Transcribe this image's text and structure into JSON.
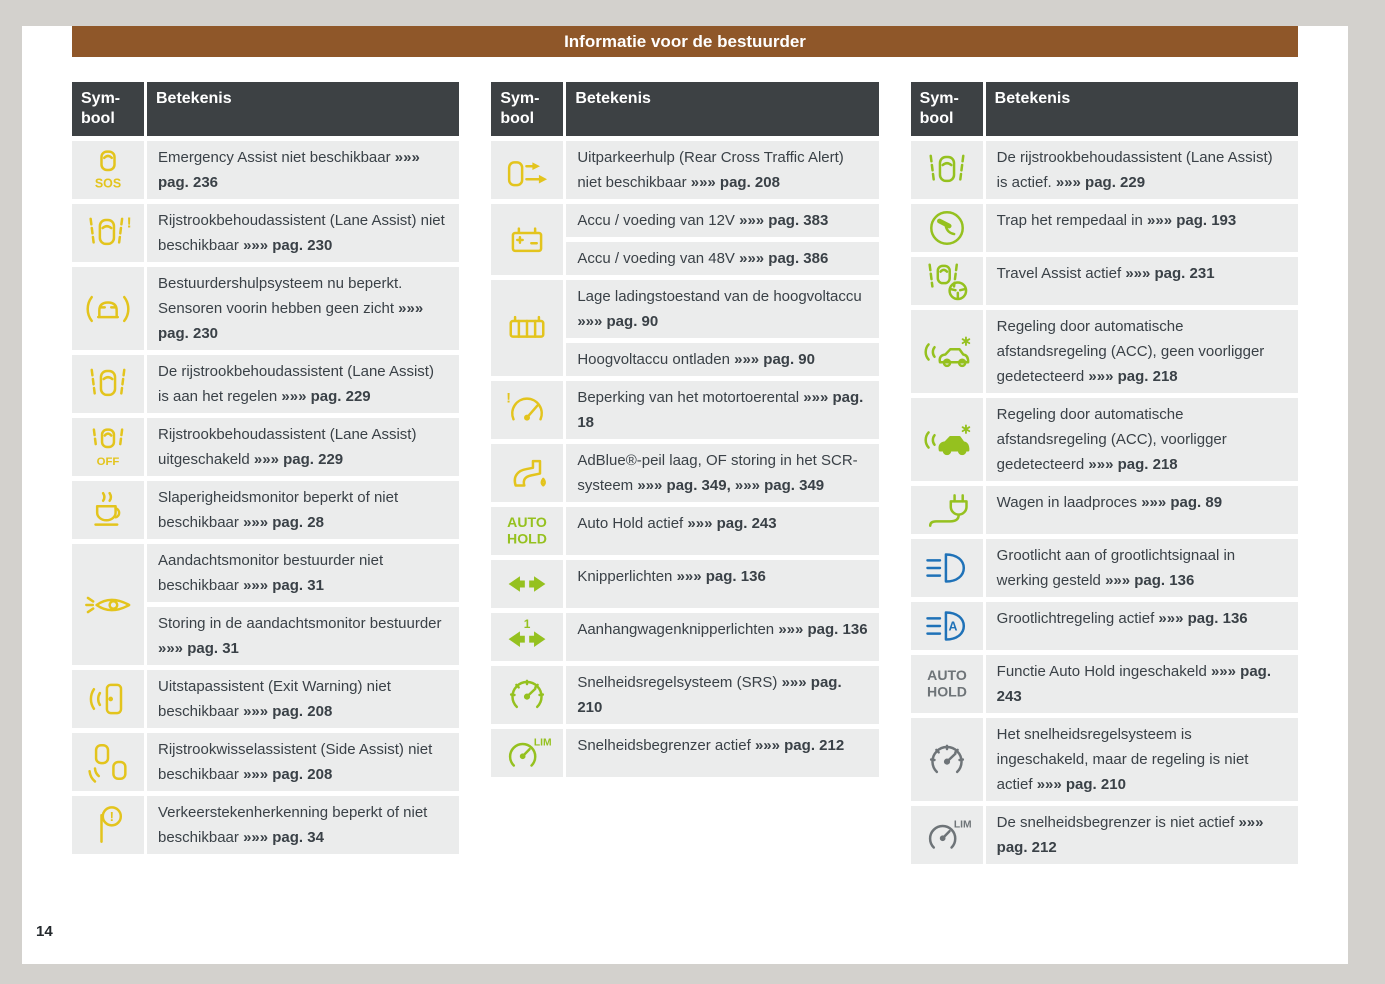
{
  "header": {
    "title": "Informatie voor de bestuurder"
  },
  "footer": {
    "page_number": "14"
  },
  "colors": {
    "accent_brown": "#8F5729",
    "table_header_bg": "#3D4144",
    "row_bg": "#EBECEC",
    "text": "#3A4147",
    "yellow": "#E3C41D",
    "green": "#95C11F",
    "blue": "#1F72B8",
    "gray": "#6E7478"
  },
  "tables": [
    {
      "headers": {
        "symbol": "Sym-\nbool",
        "meaning": "Betekenis"
      },
      "rows": [
        {
          "icon": "emergency-assist-sos-icon",
          "color": "yellow",
          "segments": [
            {
              "t": "Emergency Assist niet beschikbaar ",
              "b": false
            },
            {
              "t": "»»» pag. 236",
              "b": true
            }
          ]
        },
        {
          "icon": "lane-assist-unavailable-icon",
          "color": "yellow",
          "segments": [
            {
              "t": "Rijstrookbehoudassistent (Lane Assist) niet beschikbaar ",
              "b": false
            },
            {
              "t": "»»» pag. 230",
              "b": true
            }
          ]
        },
        {
          "icon": "driver-assist-sensors-blocked-icon",
          "color": "yellow",
          "segments": [
            {
              "t": "Bestuurdershulpsysteem nu beperkt. Sensoren voorin hebben geen zicht ",
              "b": false
            },
            {
              "t": "»»» pag. 230",
              "b": true
            }
          ]
        },
        {
          "icon": "lane-assist-intervening-icon",
          "color": "yellow",
          "segments": [
            {
              "t": "De rijstrookbehoudassistent (Lane Assist) is aan het regelen ",
              "b": false
            },
            {
              "t": "»»» pag. 229",
              "b": true
            }
          ]
        },
        {
          "icon": "lane-assist-off-icon",
          "color": "yellow",
          "segments": [
            {
              "t": "Rijstrookbehoudassistent (Lane Assist) uitgeschakeld ",
              "b": false
            },
            {
              "t": "»»» pag. 229",
              "b": true
            }
          ]
        },
        {
          "icon": "drowsiness-monitor-icon",
          "color": "yellow",
          "segments": [
            {
              "t": "Slaperigheidsmonitor beperkt of niet beschikbaar ",
              "b": false
            },
            {
              "t": "»»» pag. 28",
              "b": true
            }
          ]
        },
        {
          "icon": "attention-monitor-icon",
          "color": "yellow",
          "span": 2,
          "segments": [
            {
              "t": "Aandachtsmonitor bestuurder niet beschikbaar ",
              "b": false
            },
            {
              "t": "»»» pag. 31",
              "b": true
            }
          ]
        },
        {
          "cont": true,
          "segments": [
            {
              "t": "Storing in de aandachtsmonitor bestuurder ",
              "b": false
            },
            {
              "t": "»»» pag. 31",
              "b": true
            }
          ]
        },
        {
          "icon": "exit-warning-icon",
          "color": "yellow",
          "segments": [
            {
              "t": "Uitstapassistent (Exit Warning) niet beschikbaar ",
              "b": false
            },
            {
              "t": "»»» pag. 208",
              "b": true
            }
          ]
        },
        {
          "icon": "side-assist-icon",
          "color": "yellow",
          "segments": [
            {
              "t": "Rijstrookwisselassistent (Side Assist) niet beschikbaar ",
              "b": false
            },
            {
              "t": "»»» pag. 208",
              "b": true
            }
          ]
        },
        {
          "icon": "traffic-sign-recognition-icon",
          "color": "yellow",
          "segments": [
            {
              "t": "Verkeerstekenherkenning beperkt of niet beschikbaar ",
              "b": false
            },
            {
              "t": "»»» pag. 34",
              "b": true
            }
          ]
        }
      ]
    },
    {
      "headers": {
        "symbol": "Sym-\nbool",
        "meaning": "Betekenis"
      },
      "rows": [
        {
          "icon": "rear-cross-traffic-icon",
          "color": "yellow",
          "segments": [
            {
              "t": "Uitparkeerhulp (Rear Cross Traffic Alert) niet beschikbaar ",
              "b": false
            },
            {
              "t": "»»» pag. 208",
              "b": true
            }
          ]
        },
        {
          "icon": "battery-12v-icon",
          "color": "yellow",
          "span": 2,
          "segments": [
            {
              "t": "Accu / voeding van 12V ",
              "b": false
            },
            {
              "t": "»»» pag. 383",
              "b": true
            }
          ]
        },
        {
          "cont": true,
          "segments": [
            {
              "t": "Accu / voeding van 48V ",
              "b": false
            },
            {
              "t": "»»» pag. 386",
              "b": true
            }
          ]
        },
        {
          "icon": "high-voltage-battery-icon",
          "color": "yellow",
          "span": 2,
          "segments": [
            {
              "t": "Lage ladingstoestand van de hoogvoltaccu ",
              "b": false
            },
            {
              "t": "»»» pag. 90",
              "b": true
            }
          ]
        },
        {
          "cont": true,
          "segments": [
            {
              "t": "Hoogvoltaccu ontladen ",
              "b": false
            },
            {
              "t": "»»» pag. 90",
              "b": true
            }
          ]
        },
        {
          "icon": "engine-speed-limit-icon",
          "color": "yellow",
          "segments": [
            {
              "t": "Beperking van het motortoerental ",
              "b": false
            },
            {
              "t": "»»» pag. 18",
              "b": true
            }
          ]
        },
        {
          "icon": "adblue-icon",
          "color": "yellow",
          "segments": [
            {
              "t": "AdBlue®-peil laag, OF storing in het SCR-systeem ",
              "b": false
            },
            {
              "t": "»»» pag. 349,",
              "b": true
            },
            {
              "t": " ",
              "b": false
            },
            {
              "t": "»»» pag. 349",
              "b": true
            }
          ]
        },
        {
          "icon": "auto-hold-icon",
          "color": "green",
          "segments": [
            {
              "t": "Auto Hold actief ",
              "b": false
            },
            {
              "t": "»»» pag. 243",
              "b": true
            }
          ]
        },
        {
          "icon": "turn-signals-icon",
          "color": "green",
          "segments": [
            {
              "t": "Knipperlichten ",
              "b": false
            },
            {
              "t": "»»» pag. 136",
              "b": true
            }
          ]
        },
        {
          "icon": "trailer-turn-signals-icon",
          "color": "green",
          "segments": [
            {
              "t": "Aanhangwagenknipperlichten ",
              "b": false
            },
            {
              "t": "»»» pag. 136",
              "b": true
            }
          ]
        },
        {
          "icon": "cruise-control-icon",
          "color": "green",
          "segments": [
            {
              "t": "Snelheidsregelsysteem (SRS) ",
              "b": false
            },
            {
              "t": "»»» pag. 210",
              "b": true
            }
          ]
        },
        {
          "icon": "speed-limiter-icon",
          "color": "green",
          "segments": [
            {
              "t": "Snelheidsbegrenzer actief ",
              "b": false
            },
            {
              "t": "»»» pag. 212",
              "b": true
            }
          ]
        }
      ]
    },
    {
      "headers": {
        "symbol": "Sym-\nbool",
        "meaning": "Betekenis"
      },
      "rows": [
        {
          "icon": "lane-assist-active-icon",
          "color": "green",
          "segments": [
            {
              "t": "De rijstrookbehoudassistent (Lane Assist) is actief. ",
              "b": false
            },
            {
              "t": "»»» pag. 229",
              "b": true
            }
          ]
        },
        {
          "icon": "brake-pedal-icon",
          "color": "green",
          "segments": [
            {
              "t": "Trap het rempedaal in ",
              "b": false
            },
            {
              "t": "»»» pag. 193",
              "b": true
            }
          ]
        },
        {
          "icon": "travel-assist-icon",
          "color": "green",
          "segments": [
            {
              "t": "Travel Assist actief ",
              "b": false
            },
            {
              "t": "»»» pag. 231",
              "b": true
            }
          ]
        },
        {
          "icon": "acc-no-vehicle-icon",
          "color": "green",
          "segments": [
            {
              "t": "Regeling door automatische afstandsregeling (ACC), geen voorligger gedetecteerd ",
              "b": false
            },
            {
              "t": "»»» pag. 218",
              "b": true
            }
          ]
        },
        {
          "icon": "acc-vehicle-detected-icon",
          "color": "green",
          "segments": [
            {
              "t": "Regeling door automatische afstandsregeling (ACC), voorligger gedetecteerd ",
              "b": false
            },
            {
              "t": "»»» pag. 218",
              "b": true
            }
          ]
        },
        {
          "icon": "charging-plug-icon",
          "color": "green",
          "segments": [
            {
              "t": "Wagen in laadproces ",
              "b": false
            },
            {
              "t": "»»» pag. 89",
              "b": true
            }
          ]
        },
        {
          "icon": "high-beam-icon",
          "color": "blue",
          "segments": [
            {
              "t": "Grootlicht aan of grootlichtsignaal in werking gesteld ",
              "b": false
            },
            {
              "t": "»»» pag. 136",
              "b": true
            }
          ]
        },
        {
          "icon": "auto-high-beam-icon",
          "color": "blue",
          "segments": [
            {
              "t": "Grootlichtregeling actief ",
              "b": false
            },
            {
              "t": "»»» pag. 136",
              "b": true
            }
          ]
        },
        {
          "icon": "auto-hold-icon",
          "color": "gray",
          "segments": [
            {
              "t": "Functie Auto Hold ingeschakeld ",
              "b": false
            },
            {
              "t": "»»» pag. 243",
              "b": true
            }
          ]
        },
        {
          "icon": "cruise-control-standby-icon",
          "color": "gray",
          "segments": [
            {
              "t": "Het snelheidsregelsysteem is ingeschakeld, maar de regeling is niet actief ",
              "b": false
            },
            {
              "t": "»»» pag. 210",
              "b": true
            }
          ]
        },
        {
          "icon": "speed-limiter-inactive-icon",
          "color": "gray",
          "segments": [
            {
              "t": "De snelheidsbegrenzer is niet actief ",
              "b": false
            },
            {
              "t": "»»» pag. 212",
              "b": true
            }
          ]
        }
      ]
    }
  ]
}
